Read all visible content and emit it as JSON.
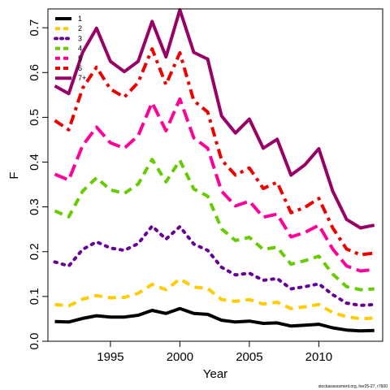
{
  "chart_data": {
    "type": "line",
    "xlabel": "Year",
    "ylabel": "F",
    "xlim": [
      1990.5,
      2014.6
    ],
    "ylim": [
      0,
      0.742
    ],
    "xticks": [
      1995,
      2000,
      2005,
      2010
    ],
    "yticks": [
      0.0,
      0.1,
      0.2,
      0.3,
      0.4,
      0.5,
      0.6,
      0.7
    ],
    "ytick_labels": [
      "0.0",
      "0.1",
      "0.2",
      "0.3",
      "0.4",
      "0.5",
      "0.6",
      "0.7"
    ],
    "grid": false,
    "legend_position": "top-left",
    "x": [
      1991,
      1992,
      1993,
      1994,
      1995,
      1996,
      1997,
      1998,
      1999,
      2000,
      2001,
      2002,
      2003,
      2004,
      2005,
      2006,
      2007,
      2008,
      2009,
      2010,
      2011,
      2012,
      2013,
      2014
    ],
    "series": [
      {
        "name": "1",
        "color": "#000000",
        "dash": "solid",
        "values": [
          0.044,
          0.043,
          0.051,
          0.057,
          0.054,
          0.054,
          0.058,
          0.069,
          0.062,
          0.073,
          0.062,
          0.06,
          0.047,
          0.043,
          0.045,
          0.04,
          0.041,
          0.034,
          0.036,
          0.038,
          0.03,
          0.025,
          0.023,
          0.024
        ]
      },
      {
        "name": "2",
        "color": "#FFCC00",
        "dash": "dashed",
        "values": [
          0.082,
          0.079,
          0.094,
          0.102,
          0.097,
          0.098,
          0.107,
          0.127,
          0.115,
          0.139,
          0.121,
          0.118,
          0.093,
          0.089,
          0.093,
          0.083,
          0.087,
          0.073,
          0.077,
          0.082,
          0.064,
          0.055,
          0.05,
          0.052
        ]
      },
      {
        "name": "3",
        "color": "#660099",
        "dash": "dotted",
        "values": [
          0.177,
          0.168,
          0.205,
          0.222,
          0.208,
          0.203,
          0.218,
          0.257,
          0.228,
          0.256,
          0.217,
          0.203,
          0.165,
          0.148,
          0.152,
          0.136,
          0.14,
          0.117,
          0.122,
          0.128,
          0.104,
          0.085,
          0.08,
          0.082
        ]
      },
      {
        "name": "4",
        "color": "#66CC00",
        "dash": "dashed",
        "values": [
          0.291,
          0.278,
          0.335,
          0.365,
          0.338,
          0.33,
          0.351,
          0.406,
          0.356,
          0.404,
          0.34,
          0.324,
          0.251,
          0.225,
          0.232,
          0.205,
          0.21,
          0.172,
          0.18,
          0.19,
          0.15,
          0.122,
          0.115,
          0.117
        ]
      },
      {
        "name": "5",
        "color": "#FF0099",
        "dash": "long-dash",
        "values": [
          0.373,
          0.36,
          0.437,
          0.478,
          0.443,
          0.431,
          0.459,
          0.533,
          0.47,
          0.541,
          0.454,
          0.431,
          0.335,
          0.302,
          0.313,
          0.277,
          0.284,
          0.233,
          0.243,
          0.259,
          0.206,
          0.168,
          0.157,
          0.16
        ]
      },
      {
        "name": "6",
        "color": "#EE0000",
        "dash": "dash-dot",
        "values": [
          0.493,
          0.472,
          0.565,
          0.612,
          0.563,
          0.545,
          0.578,
          0.653,
          0.573,
          0.644,
          0.537,
          0.512,
          0.405,
          0.371,
          0.387,
          0.341,
          0.355,
          0.287,
          0.299,
          0.319,
          0.253,
          0.206,
          0.193,
          0.197
        ]
      },
      {
        "name": "7+",
        "color": "#990066",
        "dash": "solid",
        "values": [
          0.57,
          0.553,
          0.645,
          0.699,
          0.625,
          0.602,
          0.625,
          0.714,
          0.635,
          0.74,
          0.645,
          0.63,
          0.503,
          0.465,
          0.496,
          0.431,
          0.451,
          0.371,
          0.394,
          0.43,
          0.335,
          0.272,
          0.253,
          0.259
        ]
      }
    ]
  },
  "footer": {
    "source": "stockassessment.org, her25-27, r7600"
  }
}
